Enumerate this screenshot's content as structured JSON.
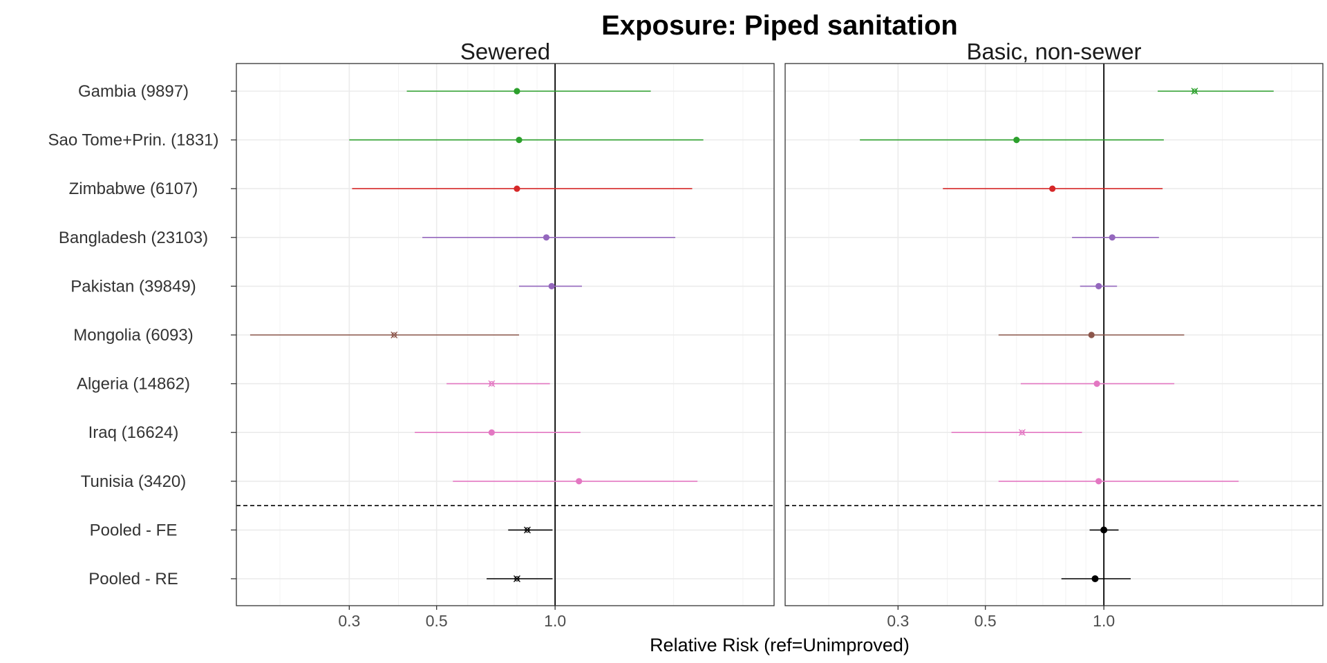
{
  "chart_data": {
    "type": "forest",
    "title": "Exposure: Piped sanitation",
    "xlabel": "Relative Risk (ref=Unimproved)",
    "x_scale": "log",
    "xlim": [
      0.155,
      3.6
    ],
    "x_ticks": [
      0.3,
      0.5,
      1.0
    ],
    "x_tick_labels": [
      "0.3",
      "0.5",
      "1.0"
    ],
    "reference_line": 1.0,
    "grid": true,
    "rows": [
      "Gambia (9897)",
      "Sao Tome+Prin. (1831)",
      "Zimbabwe (6107)",
      "Bangladesh (23103)",
      "Pakistan (39849)",
      "Mongolia (6093)",
      "Algeria (14862)",
      "Iraq (16624)",
      "Tunisia (3420)",
      "Pooled - FE",
      "Pooled - RE"
    ],
    "row_colors": [
      "#2ca02c",
      "#2ca02c",
      "#d62728",
      "#9467bd",
      "#9467bd",
      "#8c564b",
      "#e377c2",
      "#e377c2",
      "#e377c2",
      "#000000",
      "#000000"
    ],
    "separator_after_row": 9,
    "panels": [
      {
        "title": "Sewered",
        "estimates": [
          {
            "est": 0.8,
            "lo": 0.42,
            "hi": 1.75,
            "marker": "circle"
          },
          {
            "est": 0.81,
            "lo": 0.3,
            "hi": 2.38,
            "marker": "circle"
          },
          {
            "est": 0.8,
            "lo": 0.305,
            "hi": 2.23,
            "marker": "circle"
          },
          {
            "est": 0.95,
            "lo": 0.46,
            "hi": 2.02,
            "marker": "circle"
          },
          {
            "est": 0.98,
            "lo": 0.81,
            "hi": 1.17,
            "marker": "circle"
          },
          {
            "est": 0.39,
            "lo": 0.168,
            "hi": 0.81,
            "marker": "x"
          },
          {
            "est": 0.69,
            "lo": 0.53,
            "hi": 0.97,
            "marker": "x"
          },
          {
            "est": 0.69,
            "lo": 0.44,
            "hi": 1.16,
            "marker": "circle"
          },
          {
            "est": 1.15,
            "lo": 0.55,
            "hi": 2.3,
            "marker": "circle"
          },
          {
            "est": 0.85,
            "lo": 0.76,
            "hi": 0.985,
            "marker": "x"
          },
          {
            "est": 0.8,
            "lo": 0.67,
            "hi": 0.985,
            "marker": "x"
          }
        ]
      },
      {
        "title": "Basic, non-sewer",
        "estimates": [
          {
            "est": 1.7,
            "lo": 1.37,
            "hi": 2.7,
            "marker": "x"
          },
          {
            "est": 0.6,
            "lo": 0.24,
            "hi": 1.42,
            "marker": "circle"
          },
          {
            "est": 0.74,
            "lo": 0.39,
            "hi": 1.41,
            "marker": "circle"
          },
          {
            "est": 1.05,
            "lo": 0.83,
            "hi": 1.38,
            "marker": "circle"
          },
          {
            "est": 0.97,
            "lo": 0.87,
            "hi": 1.08,
            "marker": "circle"
          },
          {
            "est": 0.93,
            "lo": 0.54,
            "hi": 1.6,
            "marker": "circle"
          },
          {
            "est": 0.96,
            "lo": 0.615,
            "hi": 1.51,
            "marker": "circle"
          },
          {
            "est": 0.62,
            "lo": 0.41,
            "hi": 0.88,
            "marker": "x"
          },
          {
            "est": 0.97,
            "lo": 0.54,
            "hi": 2.2,
            "marker": "circle"
          },
          {
            "est": 1.0,
            "lo": 0.92,
            "hi": 1.09,
            "marker": "diamond"
          },
          {
            "est": 0.95,
            "lo": 0.78,
            "hi": 1.17,
            "marker": "diamond"
          }
        ]
      }
    ]
  }
}
